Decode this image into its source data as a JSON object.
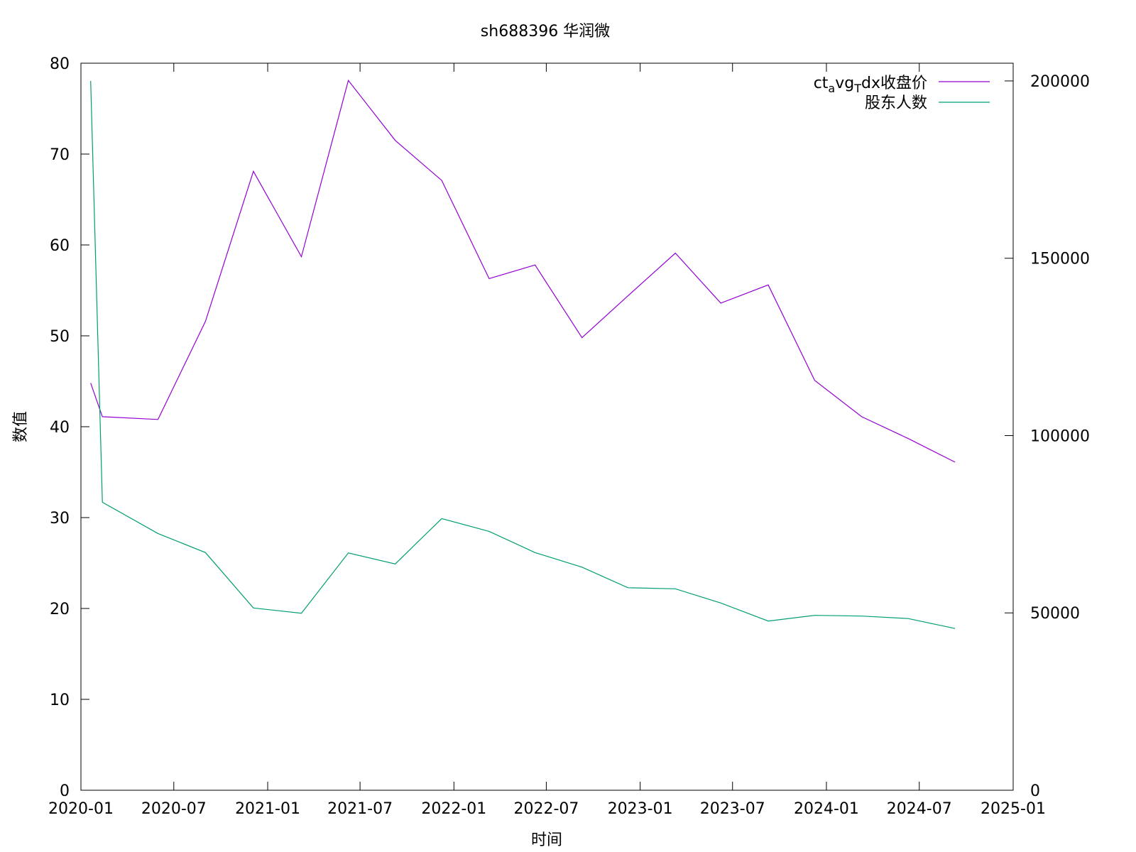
{
  "chart_data": {
    "type": "line",
    "title": "sh688396 华润微",
    "xlabel": "时间",
    "ylabel": "数值",
    "x_ticks": [
      "2020-01",
      "2020-07",
      "2021-01",
      "2021-07",
      "2022-01",
      "2022-07",
      "2023-01",
      "2023-07",
      "2024-01",
      "2024-07",
      "2025-01"
    ],
    "xlim": [
      "2020-01-01",
      "2025-01-01"
    ],
    "ylim": [
      0,
      80
    ],
    "y_ticks": [
      0,
      10,
      20,
      30,
      40,
      50,
      60,
      70,
      80
    ],
    "y2lim": [
      0,
      205000
    ],
    "y2_ticks": [
      0,
      50000,
      100000,
      150000,
      200000
    ],
    "legend_position": "top-right",
    "grid": false,
    "legend": {
      "label_base": "ct",
      "label_sub1": "a",
      "label_mid": "vg",
      "label_sub2": "T",
      "label_rest": "dx收盘价"
    },
    "series": [
      {
        "name": "ct_avg_Tdx收盘价",
        "axis": "left",
        "color": "#9400d3",
        "points": [
          [
            "2020-01-20",
            44.8
          ],
          [
            "2020-02-12",
            41.1
          ],
          [
            "2020-05-31",
            40.8
          ],
          [
            "2020-09-01",
            51.6
          ],
          [
            "2020-12-04",
            68.1
          ],
          [
            "2021-03-08",
            58.7
          ],
          [
            "2021-06-08",
            78.1
          ],
          [
            "2021-09-08",
            71.5
          ],
          [
            "2021-12-08",
            67.1
          ],
          [
            "2022-03-11",
            56.3
          ],
          [
            "2022-06-09",
            57.8
          ],
          [
            "2022-09-09",
            49.8
          ],
          [
            "2022-12-08",
            54.4
          ],
          [
            "2023-03-11",
            59.1
          ],
          [
            "2023-06-08",
            53.6
          ],
          [
            "2023-09-09",
            55.6
          ],
          [
            "2023-12-09",
            45.1
          ],
          [
            "2024-03-10",
            41.1
          ],
          [
            "2024-06-09",
            38.7
          ],
          [
            "2024-09-09",
            36.1
          ]
        ]
      },
      {
        "name": "股东人数",
        "axis": "right",
        "color": "#009e73",
        "points": [
          [
            "2020-01-20",
            200000
          ],
          [
            "2020-02-12",
            81200
          ],
          [
            "2020-05-31",
            72400
          ],
          [
            "2020-09-01",
            67000
          ],
          [
            "2020-12-04",
            51400
          ],
          [
            "2021-03-08",
            49900
          ],
          [
            "2021-06-08",
            66900
          ],
          [
            "2021-09-08",
            63800
          ],
          [
            "2021-12-08",
            76600
          ],
          [
            "2022-03-11",
            73000
          ],
          [
            "2022-06-09",
            67000
          ],
          [
            "2022-09-09",
            62900
          ],
          [
            "2022-12-08",
            57100
          ],
          [
            "2023-03-11",
            56800
          ],
          [
            "2023-06-08",
            52800
          ],
          [
            "2023-09-09",
            47700
          ],
          [
            "2023-12-09",
            49300
          ],
          [
            "2024-03-10",
            49100
          ],
          [
            "2024-06-09",
            48400
          ],
          [
            "2024-09-09",
            45600
          ]
        ]
      }
    ]
  }
}
